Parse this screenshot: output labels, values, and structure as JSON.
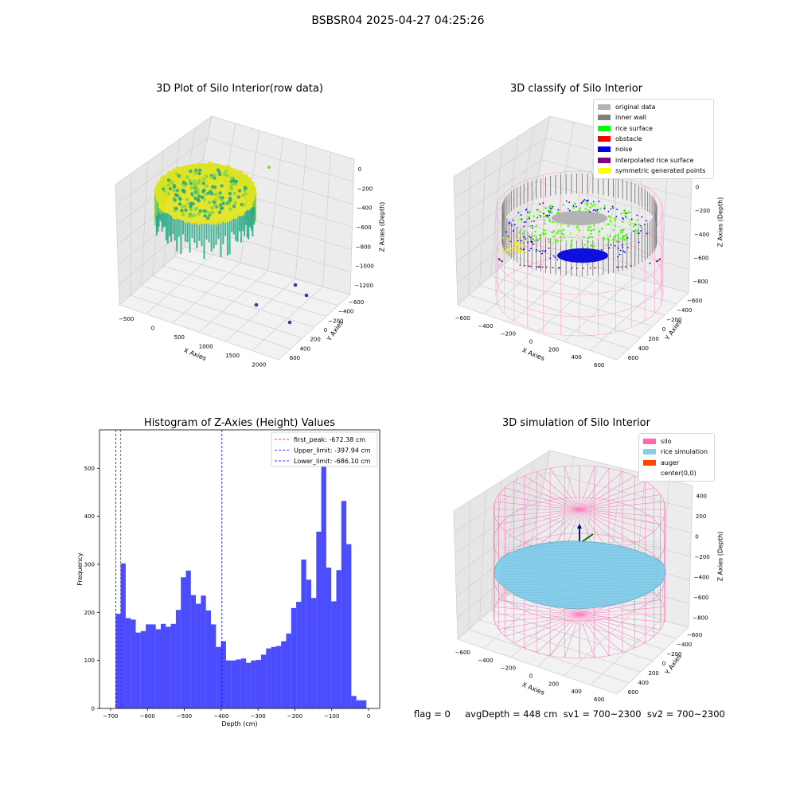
{
  "suptitle": "BSBSR04 2025-04-27 04:25:26",
  "footer": "flag = 0     avgDepth = 448 cm  sv1 = 700~2300  sv2 = 700~2300",
  "panels": {
    "raw": {
      "title": "3D Plot of Silo Interior(row data)",
      "xlabel": "X Axies",
      "ylabel": "Y Axies",
      "zlabel": "Z Axies (Depth)",
      "xticks": [
        "−500",
        "0",
        "500",
        "1000",
        "1500",
        "2000"
      ],
      "yticks": [
        "−600",
        "−400",
        "−200",
        "0",
        "200",
        "400",
        "600"
      ],
      "zticks": [
        "0",
        "−200",
        "−400",
        "−600",
        "−800",
        "−1000",
        "−1200"
      ],
      "colors": {
        "cloud_top": "#e3e419",
        "cloud_mid": "#7fd34e",
        "cloud_low": "#26a884",
        "outlier": "#5b2a86"
      }
    },
    "classify": {
      "title": "3D classify of Silo Interior",
      "xlabel": "X Axies",
      "ylabel": "Y Axies",
      "zlabel": "Z Axies (Depth)",
      "xticks": [
        "−600",
        "−400",
        "−200",
        "0",
        "200",
        "400",
        "600"
      ],
      "yticks": [
        "−600",
        "−400",
        "−200",
        "0",
        "200",
        "400",
        "600"
      ],
      "zticks": [
        "200",
        "0",
        "−200",
        "−400",
        "−600",
        "−800"
      ],
      "legend": [
        {
          "label": "original data",
          "color": "#b3b3b3"
        },
        {
          "label": "inner wall",
          "color": "#808080"
        },
        {
          "label": "rice surface",
          "color": "#00ff00"
        },
        {
          "label": "obstacle",
          "color": "#ff0000"
        },
        {
          "label": "noise",
          "color": "#0000ff"
        },
        {
          "label": "interpolated rice surface",
          "color": "#800080"
        },
        {
          "label": "symmetric generated points",
          "color": "#ffff00"
        }
      ]
    },
    "histogram": {
      "title": "Histogram of Z-Axies (Height) Values",
      "legend": [
        {
          "label": "first_peak: -672.38 cm",
          "color": "#ff0000"
        },
        {
          "label": "Upper_limit: -397.94 cm",
          "color": "#0000ff"
        },
        {
          "label": "Lower_limit: -686.10 cm",
          "color": "#0000ff"
        }
      ]
    },
    "simulation": {
      "title": "3D simulation of Silo Interior",
      "xlabel": "X Axies",
      "ylabel": "Y Axies",
      "zlabel": "Z Axies (Depth)",
      "xticks": [
        "−600",
        "−400",
        "−200",
        "0",
        "200",
        "400",
        "600"
      ],
      "yticks": [
        "−600",
        "−400",
        "−200",
        "0",
        "200",
        "400",
        "600"
      ],
      "zticks": [
        "400",
        "200",
        "0",
        "−200",
        "−400",
        "−600",
        "−800"
      ],
      "legend": [
        {
          "label": "silo",
          "color": "#ff69b4"
        },
        {
          "label": "rice simulation",
          "color": "#87ceeb"
        },
        {
          "label": "auger",
          "color": "#ff4500"
        },
        {
          "label": "center(0,0)",
          "color": "#ffffff"
        }
      ]
    }
  },
  "chart_data": {
    "type": "bar",
    "title": "Histogram of Z-Axies (Height) Values",
    "xlabel": "Depth (cm)",
    "ylabel": "Frequency",
    "xlim": [
      -730,
      30
    ],
    "ylim": [
      0,
      580
    ],
    "xticks": [
      -700,
      -600,
      -500,
      -400,
      -300,
      -200,
      -100,
      0
    ],
    "yticks": [
      0,
      100,
      200,
      300,
      400,
      500
    ],
    "bin_start": -686.1,
    "bin_width": 13.6,
    "values": [
      197,
      302,
      188,
      185,
      158,
      161,
      175,
      175,
      165,
      176,
      170,
      176,
      205,
      273,
      287,
      236,
      218,
      235,
      204,
      175,
      128,
      140,
      100,
      100,
      102,
      104,
      95,
      100,
      101,
      112,
      125,
      128,
      130,
      140,
      156,
      209,
      222,
      310,
      268,
      230,
      368,
      560,
      293,
      223,
      288,
      432,
      342,
      26,
      17,
      17
    ],
    "bar_color": "#0000ff",
    "vlines": [
      {
        "name": "first_peak",
        "value": -672.38,
        "color": "#ff0000"
      },
      {
        "name": "Upper_limit",
        "value": -397.94,
        "color": "#0000ff"
      },
      {
        "name": "Lower_limit",
        "value": -686.1,
        "color": "#0000ff"
      }
    ],
    "legend_position": "upper right"
  }
}
